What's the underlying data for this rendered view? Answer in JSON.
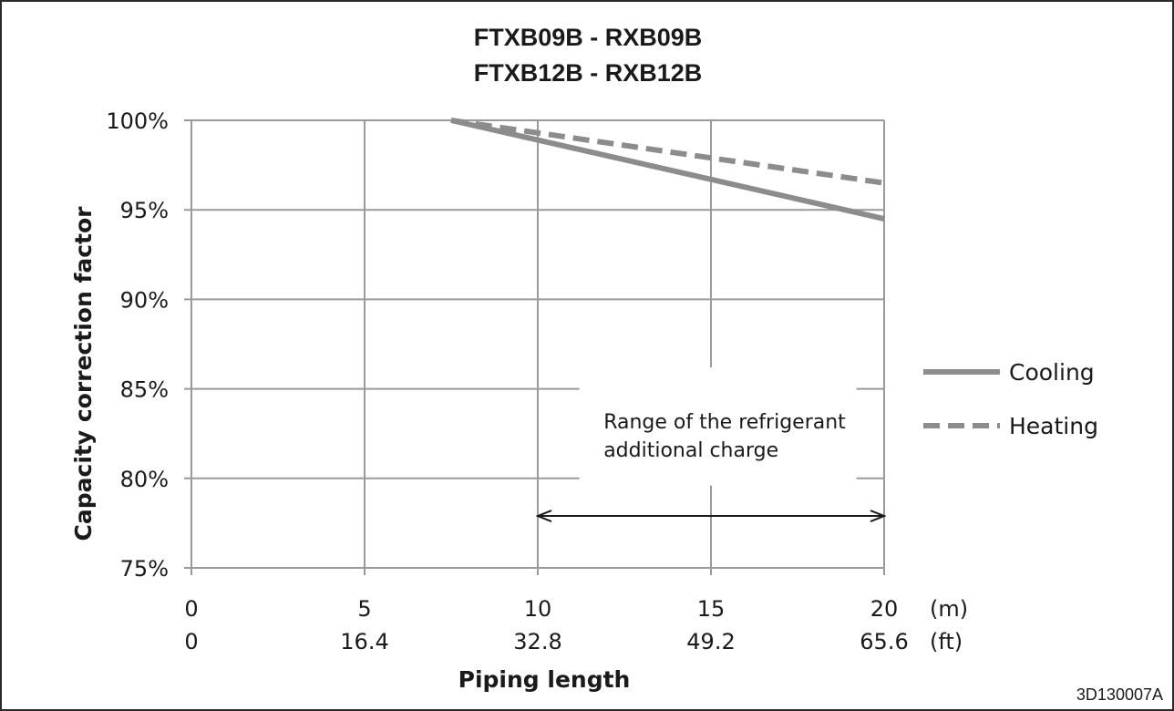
{
  "chart_data": {
    "type": "line",
    "title_lines": [
      "FTXB09B - RXB09B",
      "FTXB12B - RXB12B"
    ],
    "xlabel": "Piping length",
    "ylabel": "Capacity correction factor",
    "xlim": [
      0,
      20
    ],
    "ylim": [
      75,
      100
    ],
    "x_ticks_m": [
      0,
      5,
      10,
      15,
      20
    ],
    "x_ticks_ft": [
      "0",
      "16.4",
      "32.8",
      "49.2",
      "65.6"
    ],
    "x_unit_m": "(m)",
    "x_unit_ft": "(ft)",
    "y_ticks": [
      75,
      80,
      85,
      90,
      95,
      100
    ],
    "y_tick_labels": [
      "75%",
      "80%",
      "85%",
      "90%",
      "95%",
      "100%"
    ],
    "grid": true,
    "legend_position": "right",
    "series": [
      {
        "name": "Cooling",
        "style": "solid",
        "color": "#8c8c8c",
        "x": [
          7.5,
          20
        ],
        "y": [
          100,
          94.5
        ]
      },
      {
        "name": "Heating",
        "style": "dashed",
        "color": "#8c8c8c",
        "x": [
          7.5,
          20
        ],
        "y": [
          100,
          96.5
        ]
      }
    ],
    "annotation": {
      "text_lines": [
        "Range of the refrigerant",
        "additional charge"
      ],
      "x_range": [
        10,
        20
      ],
      "y": 77.9
    }
  },
  "drawing_code": "3D130007A"
}
